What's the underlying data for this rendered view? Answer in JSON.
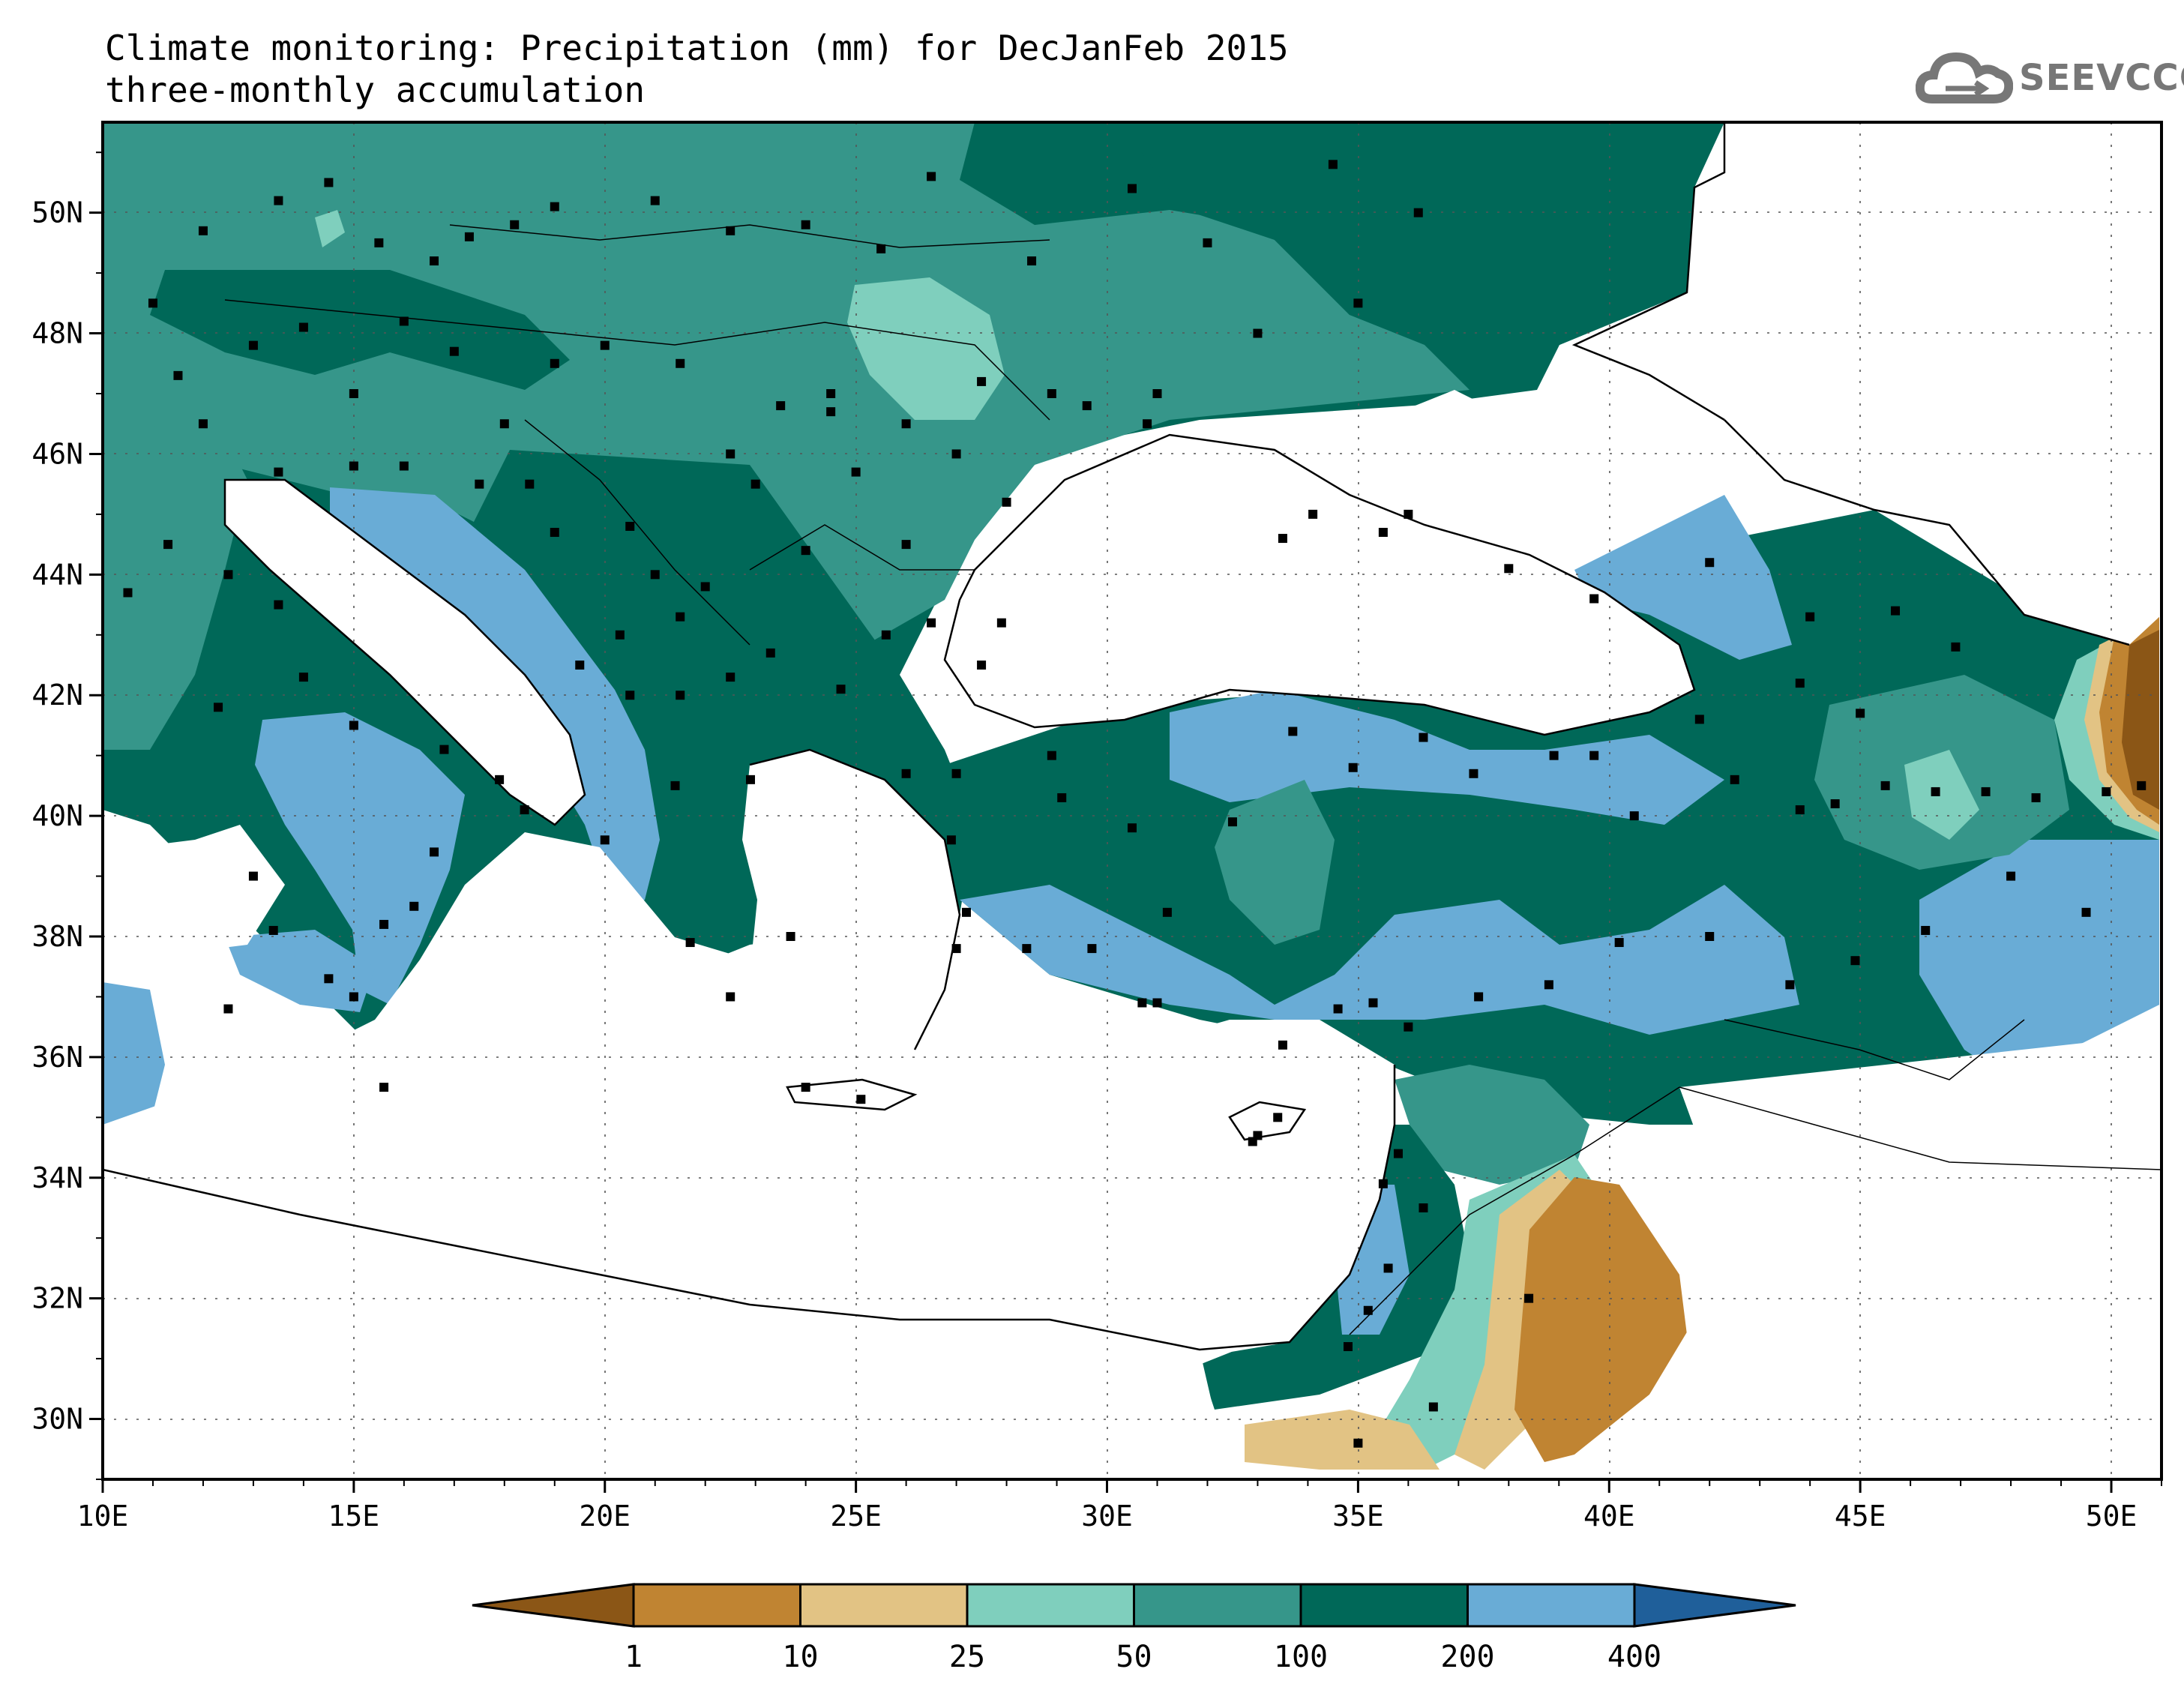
{
  "header": {
    "title": "Climate monitoring: Precipitation (mm) for DecJanFeb 2015",
    "subtitle": "three-monthly accumulation"
  },
  "logo": {
    "text": "SEEVCCC",
    "icon": "cloud-icon"
  },
  "map": {
    "projection": "lat-lon",
    "lon_range": [
      10,
      51
    ],
    "lat_range": [
      29,
      51.5
    ],
    "x_ticks": [
      "10E",
      "15E",
      "20E",
      "25E",
      "30E",
      "35E",
      "40E",
      "45E",
      "50E"
    ],
    "y_ticks": [
      "30N",
      "32N",
      "34N",
      "36N",
      "38N",
      "40N",
      "42N",
      "44N",
      "46N",
      "48N",
      "50N"
    ],
    "grid": true,
    "stations": "black square markers"
  },
  "legend": {
    "labels": [
      "1",
      "10",
      "25",
      "50",
      "100",
      "200",
      "400"
    ],
    "colors": [
      "#8b5616",
      "#c08432",
      "#e2c384",
      "#7fcfbd",
      "#36968a",
      "#006858",
      "#69acd6",
      "#1f5f9a"
    ]
  }
}
